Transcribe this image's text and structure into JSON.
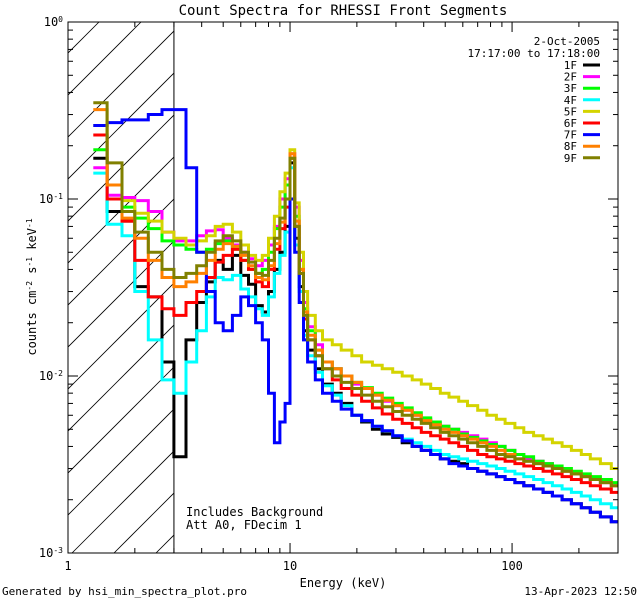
{
  "chart_data": {
    "type": "line",
    "title": "Count Spectra for RHESSI Front Segments",
    "xlabel": "Energy (keV)",
    "ylabel_base": "counts cm",
    "ylabel_exp1": "-2",
    "ylabel_mid1": " s",
    "ylabel_exp2": "-1",
    "ylabel_mid2": " keV",
    "ylabel_exp3": "-1",
    "xscale": "log",
    "yscale": "log",
    "xlim": [
      1,
      300
    ],
    "ylim": [
      0.001,
      1
    ],
    "x_ticks": [
      {
        "value": 1,
        "label": "1"
      },
      {
        "value": 10,
        "label": "10"
      },
      {
        "value": 100,
        "label": "100"
      }
    ],
    "y_ticks": [
      {
        "value": 1,
        "base": "10",
        "exp": "0"
      },
      {
        "value": 0.1,
        "base": "10",
        "exp": "-1"
      },
      {
        "value": 0.01,
        "base": "10",
        "exp": "-2"
      },
      {
        "value": 0.001,
        "base": "10",
        "exp": "-3"
      }
    ],
    "hatched_region": {
      "from": 1,
      "to": 3
    },
    "legend_position": "top-right",
    "legend_header": [
      "2-Oct-2005",
      "17:17:00 to 17:18:00"
    ],
    "annotations": [
      "Includes Background",
      "Att A0, FDecim 1"
    ],
    "energy_bins": [
      1.3,
      1.5,
      1.75,
      2.0,
      2.3,
      2.65,
      3.0,
      3.4,
      3.8,
      4.2,
      4.6,
      5.0,
      5.5,
      6.0,
      6.5,
      7.0,
      7.5,
      8.0,
      8.5,
      9.0,
      9.5,
      10.0,
      10.5,
      11.0,
      11.5,
      12.0,
      13.0,
      14.0,
      15.5,
      17.0,
      19.0,
      21.0,
      23.5,
      26.0,
      29.0,
      32.0,
      35.5,
      39.0,
      43.0,
      47.5,
      52.0,
      57.5,
      63.0,
      70.0,
      77.0,
      85.0,
      93.0,
      103.0,
      113.0,
      125.0,
      138.0,
      152.0,
      168.0,
      185.0,
      205.0,
      225.0,
      250.0,
      280.0
    ],
    "series": [
      {
        "name": "1F",
        "color": "#000000",
        "values": [
          0.17,
          0.085,
          0.075,
          0.032,
          0.028,
          0.012,
          0.0035,
          0.016,
          0.026,
          0.034,
          0.045,
          0.04,
          0.048,
          0.037,
          0.033,
          0.025,
          0.023,
          0.03,
          0.04,
          0.05,
          0.07,
          0.16,
          0.06,
          0.032,
          0.018,
          0.014,
          0.011,
          0.009,
          0.008,
          0.007,
          0.006,
          0.0055,
          0.005,
          0.0047,
          0.0045,
          0.0042,
          0.004,
          0.0038,
          0.0036,
          0.0034,
          0.0033,
          0.0032,
          0.003,
          0.0029,
          0.0028,
          0.0027,
          0.0026,
          0.0025,
          0.0024,
          0.0023,
          0.0022,
          0.0021,
          0.002,
          0.0019,
          0.0018,
          0.0017,
          0.0016,
          0.0015
        ]
      },
      {
        "name": "2F",
        "color": "#ff00ff",
        "values": [
          0.15,
          0.105,
          0.102,
          0.098,
          0.085,
          0.065,
          0.058,
          0.058,
          0.062,
          0.066,
          0.067,
          0.06,
          0.055,
          0.05,
          0.046,
          0.042,
          0.045,
          0.055,
          0.07,
          0.1,
          0.13,
          0.18,
          0.09,
          0.045,
          0.026,
          0.019,
          0.015,
          0.012,
          0.011,
          0.01,
          0.009,
          0.0085,
          0.0078,
          0.0072,
          0.0068,
          0.0064,
          0.006,
          0.0057,
          0.0054,
          0.0052,
          0.005,
          0.0048,
          0.0046,
          0.0044,
          0.0042,
          0.004,
          0.0038,
          0.0036,
          0.0034,
          0.0033,
          0.0032,
          0.003,
          0.0029,
          0.0028,
          0.0027,
          0.0026,
          0.0025,
          0.0024
        ]
      },
      {
        "name": "3F",
        "color": "#00ff00",
        "values": [
          0.19,
          0.12,
          0.09,
          0.078,
          0.068,
          0.058,
          0.055,
          0.052,
          0.05,
          0.052,
          0.056,
          0.058,
          0.052,
          0.045,
          0.04,
          0.038,
          0.04,
          0.05,
          0.068,
          0.09,
          0.12,
          0.17,
          0.08,
          0.04,
          0.024,
          0.018,
          0.014,
          0.012,
          0.011,
          0.01,
          0.0092,
          0.0086,
          0.008,
          0.0075,
          0.007,
          0.0066,
          0.0062,
          0.0058,
          0.0055,
          0.0052,
          0.005,
          0.0047,
          0.0045,
          0.0043,
          0.0041,
          0.004,
          0.0038,
          0.0036,
          0.0035,
          0.0033,
          0.0032,
          0.0031,
          0.003,
          0.0029,
          0.0028,
          0.0027,
          0.0026,
          0.0025
        ]
      },
      {
        "name": "4F",
        "color": "#00ffff",
        "values": [
          0.14,
          0.072,
          0.062,
          0.03,
          0.016,
          0.0095,
          0.008,
          0.012,
          0.018,
          0.028,
          0.036,
          0.035,
          0.037,
          0.031,
          0.028,
          0.024,
          0.022,
          0.028,
          0.038,
          0.048,
          0.065,
          0.15,
          0.055,
          0.03,
          0.017,
          0.013,
          0.0105,
          0.0088,
          0.0078,
          0.0068,
          0.006,
          0.0056,
          0.0052,
          0.0049,
          0.0046,
          0.0044,
          0.0042,
          0.004,
          0.0038,
          0.0036,
          0.0035,
          0.0034,
          0.0033,
          0.0032,
          0.0031,
          0.003,
          0.0029,
          0.0028,
          0.0027,
          0.0026,
          0.0025,
          0.0024,
          0.0023,
          0.0022,
          0.0021,
          0.002,
          0.0019,
          0.0018
        ]
      },
      {
        "name": "5F",
        "color": "#d4d400",
        "values": [
          0.26,
          0.12,
          0.098,
          0.083,
          0.075,
          0.065,
          0.06,
          0.055,
          0.058,
          0.062,
          0.07,
          0.072,
          0.065,
          0.055,
          0.048,
          0.045,
          0.048,
          0.06,
          0.08,
          0.11,
          0.14,
          0.19,
          0.095,
          0.05,
          0.03,
          0.022,
          0.018,
          0.016,
          0.015,
          0.014,
          0.013,
          0.012,
          0.0115,
          0.011,
          0.0105,
          0.01,
          0.0095,
          0.009,
          0.0085,
          0.008,
          0.0076,
          0.0072,
          0.0068,
          0.0064,
          0.006,
          0.0057,
          0.0054,
          0.0051,
          0.0048,
          0.0046,
          0.0044,
          0.0042,
          0.004,
          0.0038,
          0.0036,
          0.0034,
          0.0032,
          0.003
        ]
      },
      {
        "name": "6F",
        "color": "#ff0000",
        "values": [
          0.23,
          0.1,
          0.075,
          0.045,
          0.028,
          0.024,
          0.022,
          0.026,
          0.03,
          0.036,
          0.044,
          0.048,
          0.052,
          0.045,
          0.04,
          0.034,
          0.032,
          0.04,
          0.052,
          0.068,
          0.09,
          0.17,
          0.07,
          0.038,
          0.021,
          0.016,
          0.013,
          0.011,
          0.0095,
          0.0085,
          0.0078,
          0.0072,
          0.0066,
          0.0061,
          0.0057,
          0.0054,
          0.0051,
          0.0048,
          0.0046,
          0.0044,
          0.0042,
          0.004,
          0.0038,
          0.0036,
          0.0035,
          0.0034,
          0.0033,
          0.0032,
          0.0031,
          0.003,
          0.0029,
          0.0028,
          0.0027,
          0.0026,
          0.0025,
          0.0024,
          0.0023,
          0.0022
        ]
      },
      {
        "name": "7F",
        "color": "#0000ff",
        "values": [
          0.26,
          0.27,
          0.28,
          0.28,
          0.3,
          0.32,
          0.32,
          0.15,
          0.05,
          0.03,
          0.02,
          0.018,
          0.022,
          0.028,
          0.025,
          0.02,
          0.016,
          0.008,
          0.0042,
          0.0055,
          0.007,
          0.1,
          0.05,
          0.026,
          0.016,
          0.012,
          0.0095,
          0.008,
          0.0072,
          0.0065,
          0.006,
          0.0056,
          0.0052,
          0.0049,
          0.0046,
          0.0043,
          0.004,
          0.0038,
          0.0036,
          0.0034,
          0.0032,
          0.0031,
          0.003,
          0.0029,
          0.0028,
          0.0027,
          0.0026,
          0.0025,
          0.0024,
          0.0023,
          0.0022,
          0.0021,
          0.002,
          0.0019,
          0.0018,
          0.0017,
          0.0016,
          0.0015
        ]
      },
      {
        "name": "8F",
        "color": "#ff8000",
        "values": [
          0.32,
          0.12,
          0.078,
          0.06,
          0.045,
          0.036,
          0.032,
          0.034,
          0.038,
          0.045,
          0.052,
          0.056,
          0.054,
          0.048,
          0.042,
          0.036,
          0.035,
          0.042,
          0.056,
          0.074,
          0.1,
          0.18,
          0.075,
          0.04,
          0.023,
          0.017,
          0.014,
          0.012,
          0.011,
          0.01,
          0.0092,
          0.0085,
          0.0078,
          0.0073,
          0.0068,
          0.0064,
          0.006,
          0.0056,
          0.0053,
          0.005,
          0.0048,
          0.0046,
          0.0044,
          0.0042,
          0.004,
          0.0038,
          0.0036,
          0.0034,
          0.0033,
          0.0032,
          0.0031,
          0.003,
          0.0029,
          0.0028,
          0.0027,
          0.0026,
          0.0025,
          0.0024
        ]
      },
      {
        "name": "9F",
        "color": "#808000",
        "values": [
          0.35,
          0.16,
          0.085,
          0.065,
          0.05,
          0.04,
          0.036,
          0.038,
          0.042,
          0.05,
          0.058,
          0.062,
          0.058,
          0.05,
          0.044,
          0.038,
          0.037,
          0.045,
          0.06,
          0.078,
          0.1,
          0.17,
          0.07,
          0.038,
          0.022,
          0.016,
          0.013,
          0.011,
          0.01,
          0.0092,
          0.0085,
          0.0078,
          0.0072,
          0.0067,
          0.0063,
          0.006,
          0.0057,
          0.0054,
          0.0051,
          0.0048,
          0.0046,
          0.0044,
          0.0042,
          0.004,
          0.0038,
          0.0036,
          0.0035,
          0.0034,
          0.0033,
          0.0032,
          0.0031,
          0.003,
          0.0029,
          0.0028,
          0.0027,
          0.0026,
          0.0025,
          0.0024
        ]
      }
    ]
  },
  "footer": {
    "generated_by": "Generated by hsi_min_spectra_plot.pro",
    "timestamp": "13-Apr-2023 12:50"
  }
}
